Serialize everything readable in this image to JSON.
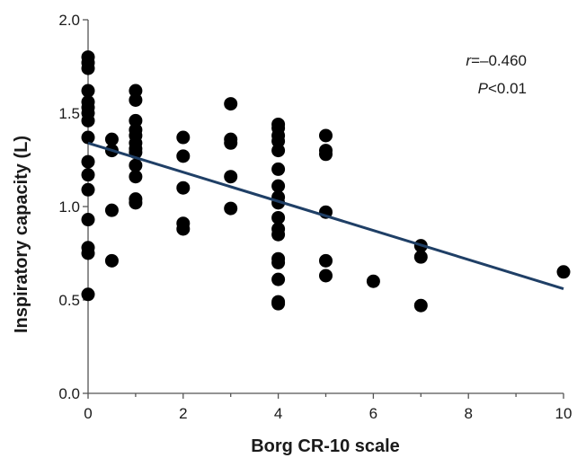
{
  "chart_data": {
    "type": "scatter",
    "title": "",
    "xlabel": "Borg CR-10 scale",
    "ylabel": "Inspiratory capacity (L)",
    "xlim": [
      0,
      10
    ],
    "ylim": [
      0,
      2.0
    ],
    "xticks": [
      "0",
      "2",
      "4",
      "6",
      "8",
      "10"
    ],
    "yticks": [
      "0.0",
      "0.5",
      "1.0",
      "1.5",
      "2.0"
    ],
    "grid": false,
    "legend": "none",
    "annotations": {
      "r_symbol": "r",
      "r_value": "=–0.460",
      "p_symbol": "P",
      "p_value": "<0.01"
    },
    "colors": {
      "points": "#000000",
      "regression_line": "#1f3f66"
    },
    "regression_line": {
      "x": [
        0,
        10
      ],
      "y": [
        1.34,
        0.56
      ]
    },
    "points": [
      [
        0,
        1.8
      ],
      [
        0,
        1.77
      ],
      [
        0,
        1.74
      ],
      [
        0,
        1.62
      ],
      [
        0,
        1.56
      ],
      [
        0,
        1.53
      ],
      [
        0,
        1.5
      ],
      [
        0,
        1.46
      ],
      [
        0,
        1.37
      ],
      [
        0,
        1.24
      ],
      [
        0,
        1.17
      ],
      [
        0,
        1.09
      ],
      [
        0,
        0.93
      ],
      [
        0,
        0.78
      ],
      [
        0,
        0.75
      ],
      [
        0,
        0.53
      ],
      [
        0.5,
        1.36
      ],
      [
        0.5,
        1.3
      ],
      [
        0.5,
        0.98
      ],
      [
        0.5,
        0.71
      ],
      [
        1,
        1.62
      ],
      [
        1,
        1.57
      ],
      [
        1,
        1.46
      ],
      [
        1,
        1.41
      ],
      [
        1,
        1.38
      ],
      [
        1,
        1.34
      ],
      [
        1,
        1.31
      ],
      [
        1,
        1.29
      ],
      [
        1,
        1.22
      ],
      [
        1,
        1.16
      ],
      [
        1,
        1.04
      ],
      [
        1,
        1.02
      ],
      [
        2,
        1.37
      ],
      [
        2,
        1.27
      ],
      [
        2,
        1.1
      ],
      [
        2,
        0.91
      ],
      [
        2,
        0.88
      ],
      [
        3,
        1.55
      ],
      [
        3,
        1.36
      ],
      [
        3,
        1.34
      ],
      [
        3,
        1.16
      ],
      [
        3,
        0.99
      ],
      [
        4,
        1.44
      ],
      [
        4,
        1.42
      ],
      [
        4,
        1.38
      ],
      [
        4,
        1.35
      ],
      [
        4,
        1.3
      ],
      [
        4,
        1.2
      ],
      [
        4,
        1.11
      ],
      [
        4,
        1.05
      ],
      [
        4,
        1.02
      ],
      [
        4,
        0.94
      ],
      [
        4,
        0.88
      ],
      [
        4,
        0.85
      ],
      [
        4,
        0.72
      ],
      [
        4,
        0.7
      ],
      [
        4,
        0.61
      ],
      [
        4,
        0.49
      ],
      [
        4,
        0.48
      ],
      [
        5,
        1.38
      ],
      [
        5,
        1.3
      ],
      [
        5,
        1.28
      ],
      [
        5,
        0.97
      ],
      [
        5,
        0.71
      ],
      [
        5,
        0.63
      ],
      [
        6,
        0.6
      ],
      [
        7,
        0.79
      ],
      [
        7,
        0.73
      ],
      [
        7,
        0.47
      ],
      [
        10,
        0.65
      ]
    ]
  }
}
